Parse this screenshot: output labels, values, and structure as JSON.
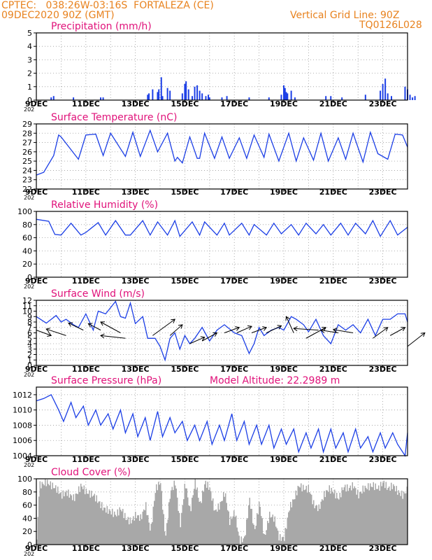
{
  "header": {
    "line1": "CPTEC:   038:26W-03:16S  FORTALEZA (CE)",
    "line2": "09DEC2020 90Z (GMT)",
    "grid_note": "Vertical Grid Line: 90Z",
    "code": "TQ0126L028",
    "color": "#e8821e"
  },
  "colors": {
    "title": "#e0127a",
    "line": "#1c3fe6",
    "cloud": "#a8a8a8",
    "grid": "#9a9a9a"
  },
  "x_ticks": [
    "9DEC",
    "11DEC",
    "13DEC",
    "15DEC",
    "17DEC",
    "19DEC",
    "21DEC",
    "23DEC"
  ],
  "x_truncated": "202",
  "chart_data": [
    {
      "type": "bar",
      "title": "Precipitation (mm/h)",
      "x_range_days": [
        9,
        24
      ],
      "ylim": [
        0,
        5
      ],
      "yticks": [
        "0",
        "1",
        "2",
        "3",
        "4",
        "5"
      ],
      "x": [
        9.6,
        9.7,
        10.5,
        11.6,
        11.7,
        13.5,
        13.55,
        13.7,
        13.9,
        13.95,
        14.05,
        14.1,
        14.3,
        14.4,
        14.9,
        15.0,
        15.05,
        15.15,
        15.3,
        15.4,
        15.5,
        15.6,
        15.7,
        15.85,
        15.95,
        16.0,
        16.5,
        16.7,
        17.6,
        18.4,
        18.9,
        19.0,
        19.05,
        19.1,
        19.15,
        19.3,
        19.45,
        20.7,
        20.9,
        21.35,
        22.3,
        22.9,
        23.0,
        23.1,
        23.2,
        23.35,
        23.9,
        24.0,
        24.1,
        24.2,
        24.3
      ],
      "values": [
        0.2,
        0.3,
        0.2,
        0.2,
        0.2,
        0.4,
        0.5,
        0.8,
        0.6,
        0.8,
        1.7,
        0.3,
        0.9,
        0.7,
        0.5,
        1.2,
        1.4,
        0.8,
        0.3,
        1.0,
        1.1,
        0.7,
        0.5,
        0.3,
        0.4,
        0.2,
        0.2,
        0.3,
        0.2,
        0.2,
        0.4,
        1.1,
        0.9,
        0.6,
        0.5,
        0.7,
        0.2,
        0.3,
        0.3,
        0.2,
        0.4,
        0.7,
        1.2,
        1.6,
        0.5,
        0.3,
        1.0,
        0.8,
        0.4,
        0.2,
        0.3
      ]
    },
    {
      "type": "line",
      "title": "Surface Temperature (nC)",
      "x_range_days": [
        9,
        24
      ],
      "ylim": [
        22,
        29
      ],
      "yticks": [
        "22",
        "23",
        "24",
        "25",
        "26",
        "27",
        "28",
        "29"
      ],
      "x": [
        9.0,
        9.3,
        9.7,
        9.9,
        10.0,
        10.7,
        11.0,
        11.4,
        11.7,
        12.0,
        12.6,
        12.9,
        13.2,
        13.6,
        13.9,
        14.2,
        14.3,
        14.6,
        14.7,
        14.9,
        15.2,
        15.5,
        15.6,
        15.8,
        16.2,
        16.5,
        16.8,
        17.2,
        17.5,
        17.8,
        18.2,
        18.4,
        18.8,
        19.2,
        19.5,
        19.8,
        20.2,
        20.5,
        20.8,
        21.2,
        21.5,
        21.8,
        22.2,
        22.5,
        22.8,
        23.2,
        23.5,
        23.8,
        24.0
      ],
      "values": [
        23.5,
        23.8,
        25.6,
        27.8,
        27.6,
        25.2,
        27.8,
        27.9,
        25.6,
        28.0,
        25.5,
        28.1,
        25.5,
        28.3,
        26.0,
        27.5,
        28.0,
        25.0,
        25.4,
        24.8,
        27.6,
        25.3,
        25.3,
        28.0,
        25.3,
        27.6,
        25.3,
        27.5,
        25.3,
        27.8,
        25.4,
        27.9,
        25.0,
        28.0,
        25.0,
        27.5,
        25.1,
        28.0,
        25.0,
        27.5,
        25.2,
        28.0,
        24.9,
        28.1,
        25.8,
        25.2,
        27.9,
        27.8,
        26.5
      ]
    },
    {
      "type": "line",
      "title": "Relative Humidity (%)",
      "x_range_days": [
        9,
        24
      ],
      "ylim": [
        0,
        100
      ],
      "yticks": [
        "0",
        "20",
        "40",
        "60",
        "80",
        "100"
      ],
      "x": [
        9.0,
        9.5,
        9.75,
        10.0,
        10.4,
        10.8,
        11.0,
        11.5,
        11.8,
        12.2,
        12.6,
        12.8,
        13.3,
        13.6,
        13.9,
        14.3,
        14.6,
        14.8,
        15.3,
        15.6,
        15.8,
        16.3,
        16.6,
        16.8,
        17.3,
        17.6,
        17.8,
        18.3,
        18.6,
        18.9,
        19.3,
        19.6,
        19.9,
        20.3,
        20.6,
        20.9,
        21.3,
        21.6,
        21.9,
        22.3,
        22.6,
        22.9,
        23.3,
        23.6,
        24.0
      ],
      "values": [
        88,
        85,
        65,
        64,
        82,
        64,
        68,
        83,
        64,
        86,
        64,
        64,
        86,
        64,
        84,
        64,
        86,
        62,
        84,
        64,
        84,
        64,
        82,
        64,
        82,
        64,
        80,
        64,
        82,
        66,
        80,
        64,
        82,
        66,
        80,
        64,
        82,
        64,
        82,
        66,
        86,
        62,
        86,
        64,
        76
      ]
    },
    {
      "type": "line",
      "title": "Surface Wind (m/s)",
      "x_range_days": [
        9,
        24
      ],
      "ylim": [
        0,
        12
      ],
      "yticks": [
        "0",
        "1",
        "2",
        "3",
        "4",
        "5",
        "6",
        "7",
        "8",
        "9",
        "10",
        "11",
        "12"
      ],
      "x": [
        9.0,
        9.4,
        9.8,
        10.0,
        10.2,
        10.5,
        10.7,
        11.0,
        11.3,
        11.5,
        11.8,
        12.2,
        12.4,
        12.6,
        12.8,
        13.0,
        13.3,
        13.5,
        13.8,
        14.0,
        14.2,
        14.4,
        14.6,
        14.8,
        15.0,
        15.2,
        15.4,
        15.7,
        16.0,
        16.3,
        16.6,
        17.0,
        17.3,
        17.6,
        17.8,
        18.0,
        18.2,
        18.5,
        18.8,
        19.0,
        19.3,
        19.5,
        19.8,
        20.0,
        20.3,
        20.6,
        20.9,
        21.2,
        21.5,
        21.8,
        22.1,
        22.4,
        22.7,
        23.0,
        23.3,
        23.6,
        23.9,
        24.0
      ],
      "values": [
        9.0,
        7.8,
        9.2,
        8.0,
        8.5,
        7.5,
        7.0,
        9.5,
        6.5,
        10.0,
        9.5,
        11.8,
        9.0,
        8.7,
        11.5,
        7.7,
        9.0,
        5.0,
        5.0,
        3.5,
        1.0,
        5.0,
        6.0,
        3.0,
        5.5,
        4.0,
        5.0,
        7.0,
        4.5,
        6.5,
        7.5,
        6.0,
        5.5,
        2.2,
        4.0,
        7.0,
        5.5,
        6.5,
        7.0,
        6.5,
        9.0,
        8.5,
        7.5,
        6.2,
        8.5,
        5.5,
        4.0,
        7.5,
        6.5,
        7.5,
        6.0,
        8.5,
        5.5,
        8.5,
        8.5,
        9.5,
        9.5,
        8.0
      ],
      "vectors": [
        {
          "x": 9.0,
          "y": 6.5,
          "dx": 0.6,
          "dy": -1.0
        },
        {
          "x": 10.2,
          "y": 5.5,
          "dx": -0.8,
          "dy": 1.2
        },
        {
          "x": 10.9,
          "y": 6.5,
          "dx": -0.6,
          "dy": 1.3
        },
        {
          "x": 11.6,
          "y": 6.5,
          "dx": -0.5,
          "dy": 1.2
        },
        {
          "x": 12.4,
          "y": 6.0,
          "dx": -0.8,
          "dy": 2.0
        },
        {
          "x": 12.6,
          "y": 5.0,
          "dx": -1.0,
          "dy": 0.5
        },
        {
          "x": 13.7,
          "y": 5.5,
          "dx": 0.9,
          "dy": 3.0
        },
        {
          "x": 14.4,
          "y": 5.5,
          "dx": 0.5,
          "dy": 2.0
        },
        {
          "x": 15.2,
          "y": 4.0,
          "dx": 0.6,
          "dy": 1.2
        },
        {
          "x": 15.7,
          "y": 4.5,
          "dx": 0.6,
          "dy": 1.5
        },
        {
          "x": 16.6,
          "y": 6.0,
          "dx": 0.6,
          "dy": 1.0
        },
        {
          "x": 17.1,
          "y": 6.0,
          "dx": 0.6,
          "dy": 1.2
        },
        {
          "x": 17.7,
          "y": 6.0,
          "dx": 0.6,
          "dy": 1.0
        },
        {
          "x": 18.3,
          "y": 6.0,
          "dx": 0.6,
          "dy": 1.3
        },
        {
          "x": 19.4,
          "y": 6.0,
          "dx": -0.3,
          "dy": 3.0
        },
        {
          "x": 19.9,
          "y": 5.0,
          "dx": 0.8,
          "dy": 2.0
        },
        {
          "x": 20.4,
          "y": 6.5,
          "dx": -1.0,
          "dy": 0.3
        },
        {
          "x": 21.2,
          "y": 6.0,
          "dx": -0.7,
          "dy": 0.5
        },
        {
          "x": 21.8,
          "y": 6.0,
          "dx": -0.8,
          "dy": 0.6
        },
        {
          "x": 22.6,
          "y": 5.0,
          "dx": 0.6,
          "dy": 2.0
        },
        {
          "x": 23.3,
          "y": 5.5,
          "dx": 0.6,
          "dy": 1.5
        },
        {
          "x": 24.0,
          "y": 3.5,
          "dx": 0.7,
          "dy": 2.5
        }
      ]
    },
    {
      "type": "line",
      "title": "Surface Pressure (hPa)",
      "annotation": "Model Altitude: 22.2989 m",
      "x_range_days": [
        9,
        24
      ],
      "ylim": [
        1004,
        1013
      ],
      "yticks": [
        "1004",
        "1006",
        "1008",
        "1010",
        "1012"
      ],
      "x": [
        9.0,
        9.3,
        9.6,
        9.9,
        10.1,
        10.4,
        10.6,
        10.9,
        11.1,
        11.4,
        11.6,
        11.9,
        12.1,
        12.4,
        12.6,
        12.9,
        13.1,
        13.4,
        13.6,
        13.9,
        14.1,
        14.4,
        14.6,
        14.9,
        15.1,
        15.4,
        15.6,
        15.9,
        16.1,
        16.4,
        16.6,
        16.9,
        17.1,
        17.4,
        17.6,
        17.9,
        18.1,
        18.4,
        18.6,
        18.9,
        19.1,
        19.4,
        19.6,
        19.9,
        20.1,
        20.4,
        20.6,
        20.9,
        21.1,
        21.4,
        21.6,
        21.9,
        22.1,
        22.4,
        22.6,
        22.9,
        23.1,
        23.4,
        23.6,
        23.9,
        24.0
      ],
      "values": [
        1011.2,
        1011.5,
        1012.0,
        1010.0,
        1008.5,
        1011.0,
        1009.0,
        1010.5,
        1008.0,
        1010.0,
        1008.0,
        1009.5,
        1007.5,
        1010.0,
        1007.0,
        1009.5,
        1006.5,
        1009.0,
        1006.0,
        1009.8,
        1006.5,
        1009.0,
        1007.0,
        1008.5,
        1006.0,
        1008.0,
        1006.0,
        1008.5,
        1005.5,
        1008.0,
        1006.0,
        1009.5,
        1006.0,
        1008.5,
        1005.5,
        1008.0,
        1005.5,
        1008.0,
        1005.0,
        1007.5,
        1005.5,
        1007.5,
        1004.5,
        1007.0,
        1005.0,
        1007.5,
        1004.5,
        1007.5,
        1005.0,
        1007.0,
        1004.5,
        1007.5,
        1005.0,
        1006.5,
        1004.5,
        1007.0,
        1005.0,
        1007.0,
        1005.5,
        1004.0,
        1007.0
      ]
    },
    {
      "type": "area",
      "title": "Cloud Cover (%)",
      "x_range_days": [
        9,
        24
      ],
      "ylim": [
        0,
        100
      ],
      "yticks": [
        "0",
        "20",
        "40",
        "60",
        "80",
        "100"
      ],
      "x": [
        9.0,
        9.1,
        9.4,
        9.8,
        10.0,
        10.2,
        10.5,
        10.8,
        11.0,
        11.3,
        11.5,
        11.7,
        12.0,
        12.2,
        12.4,
        12.6,
        12.8,
        13.0,
        13.2,
        13.4,
        13.6,
        13.8,
        14.0,
        14.2,
        14.4,
        14.6,
        14.8,
        15.0,
        15.2,
        15.4,
        15.6,
        15.8,
        16.0,
        16.2,
        16.4,
        16.6,
        16.8,
        17.0,
        17.2,
        17.4,
        17.6,
        17.8,
        18.0,
        18.2,
        18.4,
        18.6,
        18.8,
        19.0,
        19.2,
        19.4,
        19.6,
        19.8,
        20.0,
        20.2,
        20.4,
        20.6,
        20.8,
        21.0,
        21.2,
        21.4,
        21.6,
        21.8,
        22.0,
        22.2,
        22.4,
        22.6,
        22.8,
        23.0,
        23.2,
        23.4,
        23.6,
        23.8,
        24.0
      ],
      "values": [
        5,
        90,
        95,
        85,
        75,
        80,
        70,
        90,
        80,
        75,
        65,
        55,
        50,
        45,
        55,
        40,
        35,
        45,
        40,
        60,
        20,
        85,
        95,
        10,
        80,
        95,
        30,
        95,
        50,
        97,
        60,
        95,
        85,
        50,
        60,
        80,
        35,
        50,
        5,
        10,
        70,
        20,
        65,
        10,
        45,
        40,
        10,
        10,
        55,
        70,
        90,
        85,
        85,
        60,
        55,
        75,
        85,
        80,
        70,
        88,
        85,
        90,
        75,
        85,
        88,
        90,
        85,
        95,
        85,
        90,
        80,
        75,
        85
      ]
    }
  ]
}
